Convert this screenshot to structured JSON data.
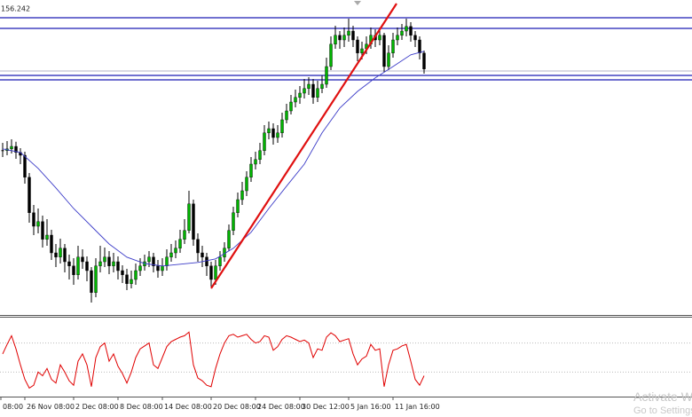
{
  "chart_data": {
    "type": "candlestick",
    "current_price": 156.242,
    "ylim": [
      147.6,
      156.475
    ],
    "up_color": "#00b400",
    "down_color": "#000000",
    "close": [
      152.23,
      152.28,
      152.35,
      152.18,
      152.1,
      151.48,
      150.48,
      150.1,
      150.23,
      149.73,
      149.85,
      149.35,
      149.23,
      149.48,
      149.1,
      148.98,
      148.73,
      149.23,
      149.1,
      148.85,
      148.23,
      148.98,
      149.1,
      149.23,
      148.98,
      149.1,
      148.85,
      148.73,
      148.48,
      148.6,
      148.85,
      148.98,
      149.1,
      149.23,
      148.98,
      148.85,
      148.98,
      149.23,
      149.35,
      149.48,
      149.73,
      149.98,
      150.73,
      149.73,
      149.35,
      149.23,
      148.98,
      148.6,
      148.98,
      149.23,
      149.48,
      149.98,
      150.48,
      150.85,
      151.1,
      151.48,
      151.85,
      151.98,
      152.23,
      152.73,
      152.85,
      152.6,
      152.73,
      153.1,
      153.35,
      153.6,
      153.73,
      153.85,
      153.98,
      154.1,
      153.73,
      153.98,
      154.1,
      154.6,
      155.23,
      155.48,
      155.35,
      155.48,
      155.6,
      155.35,
      154.98,
      155.1,
      155.23,
      155.48,
      155.35,
      155.48,
      154.6,
      154.98,
      155.35,
      155.48,
      155.6,
      155.73,
      155.48,
      155.35,
      154.98,
      154.53
    ],
    "high": [
      152.45,
      152.5,
      152.55,
      152.48,
      152.3,
      152.2,
      151.6,
      150.7,
      150.6,
      150.4,
      150.3,
      150.0,
      149.6,
      149.75,
      149.6,
      149.3,
      149.2,
      149.55,
      149.45,
      149.25,
      148.95,
      149.2,
      149.55,
      149.5,
      149.4,
      149.35,
      149.25,
      149.0,
      148.9,
      148.85,
      149.05,
      149.2,
      149.3,
      149.4,
      149.35,
      149.15,
      149.2,
      149.45,
      149.6,
      149.7,
      150.0,
      150.3,
      151.1,
      150.85,
      149.9,
      149.55,
      149.35,
      149.1,
      149.15,
      149.4,
      149.65,
      150.15,
      150.65,
      151.05,
      151.35,
      151.65,
      152.05,
      152.2,
      152.45,
      152.95,
      153.05,
      153.0,
      152.95,
      153.3,
      153.55,
      153.8,
      153.95,
      154.05,
      154.25,
      154.3,
      154.25,
      154.2,
      154.35,
      154.85,
      155.45,
      155.75,
      155.6,
      155.7,
      155.95,
      155.75,
      155.45,
      155.3,
      155.45,
      155.7,
      155.65,
      155.7,
      155.55,
      155.2,
      155.55,
      155.7,
      155.8,
      155.95,
      155.85,
      155.6,
      155.45,
      155.05
    ],
    "low": [
      152.05,
      152.1,
      152.15,
      152.0,
      151.85,
      151.3,
      150.2,
      149.85,
      149.9,
      149.5,
      149.55,
      149.15,
      148.95,
      149.05,
      148.8,
      148.6,
      148.45,
      148.6,
      148.9,
      148.55,
      147.95,
      148.1,
      148.8,
      148.95,
      148.75,
      148.8,
      148.6,
      148.5,
      148.3,
      148.35,
      148.45,
      148.7,
      148.85,
      148.95,
      148.8,
      148.65,
      148.7,
      148.85,
      149.1,
      149.2,
      149.35,
      149.6,
      149.9,
      149.55,
      149.1,
      148.95,
      148.7,
      148.4,
      148.45,
      148.85,
      149.1,
      149.4,
      149.85,
      150.35,
      150.7,
      150.95,
      151.35,
      151.7,
      151.85,
      152.1,
      152.55,
      152.4,
      152.45,
      152.6,
      153.0,
      153.25,
      153.45,
      153.55,
      153.7,
      153.8,
      153.55,
      153.6,
      153.85,
      154.0,
      154.5,
      155.1,
      155.1,
      155.15,
      155.3,
      155.15,
      154.75,
      154.8,
      154.95,
      155.1,
      155.15,
      155.2,
      154.45,
      154.5,
      154.85,
      155.2,
      155.35,
      155.45,
      155.3,
      155.15,
      154.8,
      154.4
    ],
    "ma": {
      "color": "#3c3cc8",
      "x": [
        0,
        4,
        8,
        12,
        16,
        20,
        24,
        28,
        32,
        36,
        40,
        44,
        48,
        52,
        56,
        60,
        64,
        68,
        72,
        76,
        80,
        84,
        88,
        92,
        95
      ],
      "values": [
        152.28,
        152.18,
        151.73,
        151.18,
        150.6,
        150.1,
        149.6,
        149.23,
        149.05,
        148.98,
        149.03,
        149.08,
        149.18,
        149.48,
        149.93,
        150.6,
        151.23,
        151.85,
        152.73,
        153.43,
        153.9,
        154.28,
        154.6,
        154.93,
        155.03
      ]
    },
    "levels": {
      "color": "#1c1cb4",
      "values": [
        155.975,
        155.675,
        154.35,
        154.225
      ]
    },
    "ref_line": {
      "color": "#b4b4c8",
      "value": 154.475
    },
    "trend": {
      "color": "#e01010",
      "x": [
        47,
        88.8
      ],
      "values": [
        148.35,
        156.375
      ]
    },
    "oscillator": {
      "color": "#e00000",
      "ylim": [
        0,
        100
      ],
      "levels": [
        70,
        30
      ],
      "values": [
        55,
        68,
        80,
        62,
        40,
        20,
        8,
        12,
        30,
        25,
        35,
        20,
        15,
        40,
        30,
        18,
        12,
        45,
        55,
        40,
        10,
        50,
        65,
        70,
        45,
        55,
        38,
        28,
        15,
        30,
        50,
        62,
        66,
        70,
        40,
        35,
        50,
        65,
        72,
        75,
        78,
        80,
        85,
        40,
        22,
        18,
        12,
        10,
        35,
        55,
        70,
        80,
        82,
        78,
        80,
        82,
        75,
        70,
        72,
        80,
        78,
        60,
        65,
        75,
        80,
        78,
        75,
        72,
        74,
        70,
        50,
        62,
        60,
        78,
        84,
        80,
        72,
        74,
        76,
        55,
        40,
        48,
        52,
        68,
        60,
        62,
        10,
        40,
        60,
        62,
        66,
        68,
        45,
        20,
        12,
        25
      ]
    },
    "xticks": [
      {
        "value": -0.4,
        "label": "08:00"
      },
      {
        "value": 5,
        "label": "26 Nov 08:00"
      },
      {
        "value": 16,
        "label": "2 Dec 08:00"
      },
      {
        "value": 26,
        "label": "8 Dec 08:00"
      },
      {
        "value": 36,
        "label": "14 Dec 08:00"
      },
      {
        "value": 47,
        "label": "20 Dec 08:00"
      },
      {
        "value": 57,
        "label": "24 Dec 08:00"
      },
      {
        "value": 67,
        "label": "30 Dec 12:00"
      },
      {
        "value": 78,
        "label": "5 Jan 16:00"
      },
      {
        "value": 88,
        "label": "11 Jan 16:00"
      }
    ]
  },
  "watermark": {
    "line1": "Activate W",
    "line2": "Go to Settings"
  }
}
